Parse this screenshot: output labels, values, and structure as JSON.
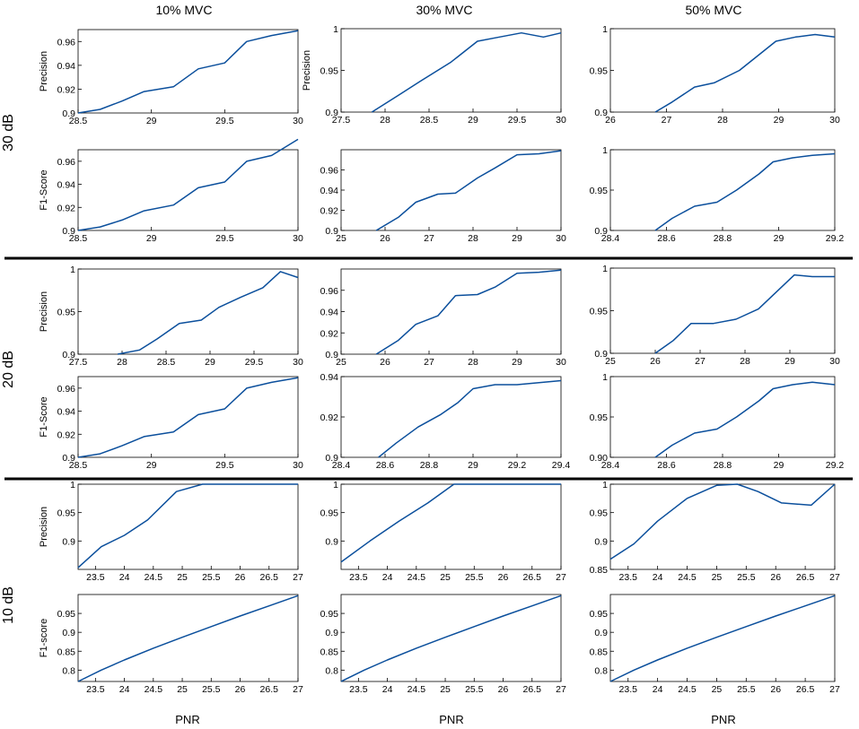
{
  "figure": {
    "column_titles": [
      "10% MVC",
      "30% MVC",
      "50% MVC"
    ],
    "row_labels": [
      "30 dB",
      "20 dB",
      "10 dB"
    ],
    "x_label": "PNR",
    "line_color": "#0b4f9c"
  },
  "chart_data": [
    {
      "type": "line",
      "group": "30 dB",
      "column": "10% MVC",
      "ylabel": "Precision",
      "xlim": [
        28.5,
        30
      ],
      "ylim": [
        0.9,
        0.97
      ],
      "xticks": [
        28.5,
        29,
        29.5,
        30
      ],
      "xtick_labels": [
        "28.5",
        "29",
        "29.5",
        "30"
      ],
      "yticks": [
        0.9,
        0.92,
        0.94,
        0.96
      ],
      "ytick_labels": [
        "0.9",
        "0.92",
        "0.94",
        "0.96"
      ],
      "x": [
        28.5,
        28.65,
        28.8,
        28.95,
        29.15,
        29.32,
        29.5,
        29.65,
        29.82,
        30
      ],
      "y": [
        0.9,
        0.903,
        0.91,
        0.918,
        0.922,
        0.937,
        0.942,
        0.96,
        0.965,
        0.969
      ]
    },
    {
      "type": "line",
      "group": "30 dB",
      "column": "10% MVC",
      "ylabel": "F1-Score",
      "xlim": [
        28.5,
        30
      ],
      "ylim": [
        0.9,
        0.97
      ],
      "xticks": [
        28.5,
        29,
        29.5,
        30
      ],
      "xtick_labels": [
        "28.5",
        "29",
        "29.5",
        "30"
      ],
      "yticks": [
        0.9,
        0.92,
        0.94,
        0.96
      ],
      "ytick_labels": [
        "0.9",
        "0.92",
        "0.94",
        "0.96"
      ],
      "x": [
        28.5,
        28.65,
        28.8,
        28.95,
        29.15,
        29.32,
        29.5,
        29.65,
        29.82,
        30
      ],
      "y": [
        0.9,
        0.903,
        0.909,
        0.917,
        0.922,
        0.937,
        0.942,
        0.96,
        0.965,
        0.979
      ]
    },
    {
      "type": "line",
      "group": "30 dB",
      "column": "30% MVC",
      "ylabel": "Precision",
      "xlim": [
        27.5,
        30
      ],
      "ylim": [
        0.9,
        1
      ],
      "xticks": [
        27.5,
        28,
        28.5,
        29,
        29.5,
        30
      ],
      "xtick_labels": [
        "27.5",
        "28",
        "28.5",
        "29",
        "29.5",
        "30"
      ],
      "yticks": [
        0.9,
        0.95,
        1
      ],
      "ytick_labels": [
        "0.9",
        "0.95",
        "1"
      ],
      "x": [
        27.85,
        28.15,
        28.4,
        28.75,
        29.05,
        29.3,
        29.55,
        29.8,
        30
      ],
      "y": [
        0.9,
        0.92,
        0.937,
        0.96,
        0.985,
        0.99,
        0.995,
        0.99,
        0.995
      ]
    },
    {
      "type": "line",
      "group": "30 dB",
      "column": "30% MVC",
      "ylabel": "",
      "xlim": [
        25,
        30
      ],
      "ylim": [
        0.9,
        0.98
      ],
      "xticks": [
        25,
        26,
        27,
        28,
        29,
        30
      ],
      "xtick_labels": [
        "25",
        "26",
        "27",
        "28",
        "29",
        "30"
      ],
      "yticks": [
        0.9,
        0.92,
        0.94,
        0.96
      ],
      "ytick_labels": [
        "0.9",
        "0.92",
        "0.94",
        "0.96"
      ],
      "x": [
        25.8,
        26.3,
        26.7,
        27.2,
        27.6,
        28.1,
        28.5,
        29,
        29.5,
        30
      ],
      "y": [
        0.9,
        0.913,
        0.928,
        0.936,
        0.937,
        0.952,
        0.962,
        0.975,
        0.976,
        0.979
      ]
    },
    {
      "type": "line",
      "group": "30 dB",
      "column": "50% MVC",
      "ylabel": "",
      "xlim": [
        26,
        30
      ],
      "ylim": [
        0.9,
        1
      ],
      "xticks": [
        26,
        27,
        28,
        29,
        30
      ],
      "xtick_labels": [
        "26",
        "27",
        "28",
        "29",
        "30"
      ],
      "yticks": [
        0.9,
        0.95,
        1
      ],
      "ytick_labels": [
        "0.9",
        "0.95",
        "1"
      ],
      "x": [
        26.8,
        27.1,
        27.5,
        27.85,
        28.3,
        28.95,
        29.3,
        29.65,
        30
      ],
      "y": [
        0.9,
        0.912,
        0.93,
        0.935,
        0.95,
        0.985,
        0.99,
        0.993,
        0.99
      ]
    },
    {
      "type": "line",
      "group": "30 dB",
      "column": "50% MVC",
      "ylabel": "",
      "xlim": [
        28.4,
        29.2
      ],
      "ylim": [
        0.9,
        1
      ],
      "xticks": [
        28.4,
        28.6,
        28.8,
        29,
        29.2
      ],
      "xtick_labels": [
        "28.4",
        "28.6",
        "28.8",
        "29",
        "29.2"
      ],
      "yticks": [
        0.9,
        0.95,
        1
      ],
      "ytick_labels": [
        "0.9",
        "0.95",
        "1"
      ],
      "x": [
        28.56,
        28.62,
        28.7,
        28.78,
        28.85,
        28.93,
        28.98,
        29.05,
        29.12,
        29.2
      ],
      "y": [
        0.9,
        0.915,
        0.93,
        0.935,
        0.95,
        0.97,
        0.985,
        0.99,
        0.993,
        0.995
      ]
    },
    {
      "type": "line",
      "group": "20 dB",
      "column": "10% MVC",
      "ylabel": "Precision",
      "xlim": [
        27.5,
        30
      ],
      "ylim": [
        0.9,
        1
      ],
      "xticks": [
        27.5,
        28,
        28.5,
        29,
        29.5,
        30
      ],
      "xtick_labels": [
        "27.5",
        "28",
        "28.5",
        "29",
        "29.5",
        "30"
      ],
      "yticks": [
        0.9,
        0.95,
        1
      ],
      "ytick_labels": [
        "0.9",
        "0.95",
        "1"
      ],
      "x": [
        27.95,
        28.2,
        28.4,
        28.65,
        28.9,
        29.1,
        29.35,
        29.6,
        29.8,
        30
      ],
      "y": [
        0.9,
        0.905,
        0.918,
        0.936,
        0.94,
        0.955,
        0.967,
        0.978,
        0.997,
        0.99
      ]
    },
    {
      "type": "line",
      "group": "20 dB",
      "column": "10% MVC",
      "ylabel": "F1-Score",
      "xlim": [
        28.5,
        30
      ],
      "ylim": [
        0.9,
        0.97
      ],
      "xticks": [
        28.5,
        29,
        29.5,
        30
      ],
      "xtick_labels": [
        "28.5",
        "29",
        "29.5",
        "30"
      ],
      "yticks": [
        0.9,
        0.92,
        0.94,
        0.96
      ],
      "ytick_labels": [
        "0.9",
        "0.92",
        "0.94",
        "0.96"
      ],
      "x": [
        28.5,
        28.65,
        28.8,
        28.95,
        29.15,
        29.32,
        29.5,
        29.65,
        29.82,
        30
      ],
      "y": [
        0.9,
        0.903,
        0.91,
        0.918,
        0.922,
        0.937,
        0.942,
        0.96,
        0.965,
        0.969
      ]
    },
    {
      "type": "line",
      "group": "20 dB",
      "column": "30% MVC",
      "ylabel": "",
      "xlim": [
        25,
        30
      ],
      "ylim": [
        0.9,
        0.98
      ],
      "xticks": [
        25,
        26,
        27,
        28,
        29,
        30
      ],
      "xtick_labels": [
        "25",
        "26",
        "27",
        "28",
        "29",
        "30"
      ],
      "yticks": [
        0.9,
        0.92,
        0.94,
        0.96
      ],
      "ytick_labels": [
        "0.9",
        "0.92",
        "0.94",
        "0.96"
      ],
      "x": [
        25.8,
        26.3,
        26.7,
        27.2,
        27.6,
        28.1,
        28.5,
        29,
        29.5,
        30
      ],
      "y": [
        0.9,
        0.913,
        0.928,
        0.936,
        0.955,
        0.956,
        0.963,
        0.976,
        0.977,
        0.979
      ]
    },
    {
      "type": "line",
      "group": "20 dB",
      "column": "30% MVC",
      "ylabel": "",
      "xlim": [
        28.4,
        29.4
      ],
      "ylim": [
        0.9,
        0.94
      ],
      "xticks": [
        28.4,
        28.6,
        28.8,
        29,
        29.2,
        29.4
      ],
      "xtick_labels": [
        "28.4",
        "28.6",
        "28.8",
        "29",
        "29.2",
        "29.4"
      ],
      "yticks": [
        0.9,
        0.92,
        0.94
      ],
      "ytick_labels": [
        "0.9",
        "0.92",
        "0.94"
      ],
      "x": [
        28.57,
        28.65,
        28.75,
        28.85,
        28.93,
        29,
        29.1,
        29.2,
        29.3,
        29.4
      ],
      "y": [
        0.9,
        0.907,
        0.915,
        0.921,
        0.927,
        0.934,
        0.936,
        0.936,
        0.937,
        0.938
      ]
    },
    {
      "type": "line",
      "group": "20 dB",
      "column": "50% MVC",
      "ylabel": "",
      "xlim": [
        25,
        30
      ],
      "ylim": [
        0.9,
        1
      ],
      "xticks": [
        25,
        26,
        27,
        28,
        29,
        30
      ],
      "xtick_labels": [
        "25",
        "26",
        "27",
        "28",
        "29",
        "30"
      ],
      "yticks": [
        0.9,
        0.95,
        1
      ],
      "ytick_labels": [
        "0.9",
        "0.95",
        "1"
      ],
      "x": [
        26,
        26.4,
        26.8,
        27.3,
        27.8,
        28.3,
        28.7,
        29.1,
        29.5,
        30
      ],
      "y": [
        0.9,
        0.915,
        0.935,
        0.935,
        0.94,
        0.952,
        0.972,
        0.992,
        0.99,
        0.99
      ]
    },
    {
      "type": "line",
      "group": "20 dB",
      "column": "50% MVC",
      "ylabel": "",
      "xlim": [
        28.4,
        29.2
      ],
      "ylim": [
        0.9,
        1
      ],
      "xticks": [
        28.4,
        28.6,
        28.8,
        29,
        29.2
      ],
      "xtick_labels": [
        "28.4",
        "28.6",
        "28.8",
        "29",
        "29.2"
      ],
      "yticks": [
        0.9,
        0.95,
        1
      ],
      "ytick_labels": [
        "0.90",
        "0.95",
        "1"
      ],
      "x": [
        28.56,
        28.62,
        28.7,
        28.78,
        28.85,
        28.93,
        28.98,
        29.05,
        29.12,
        29.2
      ],
      "y": [
        0.9,
        0.915,
        0.93,
        0.935,
        0.95,
        0.97,
        0.985,
        0.99,
        0.993,
        0.99
      ]
    },
    {
      "type": "line",
      "group": "10 dB",
      "column": "10% MVC",
      "ylabel": "Precision",
      "xlim": [
        23.2,
        27
      ],
      "ylim": [
        0.85,
        1
      ],
      "xticks": [
        23.5,
        24,
        24.5,
        25,
        25.5,
        26,
        26.5,
        27
      ],
      "xtick_labels": [
        "23.5",
        "24",
        "24.5",
        "25",
        "25.5",
        "26",
        "26.5",
        "27"
      ],
      "yticks": [
        0.9,
        0.95,
        1
      ],
      "ytick_labels": [
        "0.9",
        "0.95",
        "1"
      ],
      "x": [
        23.2,
        23.6,
        24,
        24.4,
        24.9,
        25.35,
        26,
        27
      ],
      "y": [
        0.853,
        0.89,
        0.91,
        0.937,
        0.987,
        1,
        1,
        1
      ]
    },
    {
      "type": "line",
      "group": "10 dB",
      "column": "10% MVC",
      "ylabel": "F1-score",
      "xlim": [
        23.2,
        27
      ],
      "ylim": [
        0.77,
        1
      ],
      "xticks": [
        23.5,
        24,
        24.5,
        25,
        25.5,
        26,
        26.5,
        27
      ],
      "xtick_labels": [
        "23.5",
        "24",
        "24.5",
        "25",
        "25.5",
        "26",
        "26.5",
        "27"
      ],
      "yticks": [
        0.8,
        0.85,
        0.9,
        0.95
      ],
      "ytick_labels": [
        "0.8",
        "0.85",
        "0.9",
        "0.95"
      ],
      "x": [
        23.2,
        23.6,
        24,
        24.5,
        25,
        25.5,
        26,
        26.5,
        27
      ],
      "y": [
        0.77,
        0.8,
        0.827,
        0.858,
        0.887,
        0.915,
        0.943,
        0.97,
        0.997
      ]
    },
    {
      "type": "line",
      "group": "10 dB",
      "column": "30% MVC",
      "ylabel": "",
      "xlim": [
        23.2,
        27
      ],
      "ylim": [
        0.85,
        1
      ],
      "xticks": [
        23.5,
        24,
        24.5,
        25,
        25.5,
        26,
        26.5,
        27
      ],
      "xtick_labels": [
        "23.5",
        "24",
        "24.5",
        "25",
        "25.5",
        "26",
        "26.5",
        "27"
      ],
      "yticks": [
        0.9,
        0.95,
        1
      ],
      "ytick_labels": [
        "0.9",
        "0.95",
        "1"
      ],
      "x": [
        23.2,
        23.7,
        24.2,
        24.7,
        25.15,
        27
      ],
      "y": [
        0.863,
        0.9,
        0.935,
        0.967,
        1,
        1
      ]
    },
    {
      "type": "line",
      "group": "10 dB",
      "column": "30% MVC",
      "ylabel": "",
      "xlim": [
        23.2,
        27
      ],
      "ylim": [
        0.77,
        1
      ],
      "xticks": [
        23.5,
        24,
        24.5,
        25,
        25.5,
        26,
        26.5,
        27
      ],
      "xtick_labels": [
        "23.5",
        "24",
        "24.5",
        "25",
        "25.5",
        "26",
        "26.5",
        "27"
      ],
      "yticks": [
        0.8,
        0.85,
        0.9,
        0.95
      ],
      "ytick_labels": [
        "0.8",
        "0.85",
        "0.9",
        "0.95"
      ],
      "x": [
        23.2,
        23.6,
        24,
        24.5,
        25,
        25.5,
        26,
        26.5,
        27
      ],
      "y": [
        0.77,
        0.8,
        0.827,
        0.858,
        0.887,
        0.915,
        0.943,
        0.97,
        0.997
      ]
    },
    {
      "type": "line",
      "group": "10 dB",
      "column": "50% MVC",
      "ylabel": "",
      "xlim": [
        23.2,
        27
      ],
      "ylim": [
        0.85,
        1
      ],
      "xticks": [
        23.5,
        24,
        24.5,
        25,
        25.5,
        26,
        26.5,
        27
      ],
      "xtick_labels": [
        "23.5",
        "24",
        "24.5",
        "25",
        "25.5",
        "26",
        "26.5",
        "27"
      ],
      "yticks": [
        0.85,
        0.9,
        0.95,
        1
      ],
      "ytick_labels": [
        "0.85",
        "0.9",
        "0.95",
        "1"
      ],
      "x": [
        23.2,
        23.6,
        24,
        24.5,
        25,
        25.35,
        25.7,
        26.1,
        26.6,
        27
      ],
      "y": [
        0.868,
        0.895,
        0.935,
        0.975,
        0.998,
        1,
        0.987,
        0.967,
        0.963,
        1
      ]
    },
    {
      "type": "line",
      "group": "10 dB",
      "column": "50% MVC",
      "ylabel": "",
      "xlim": [
        23.2,
        27
      ],
      "ylim": [
        0.77,
        1
      ],
      "xticks": [
        23.5,
        24,
        24.5,
        25,
        25.5,
        26,
        26.5,
        27
      ],
      "xtick_labels": [
        "23.5",
        "24",
        "24.5",
        "25",
        "25.5",
        "26",
        "26.5",
        "27"
      ],
      "yticks": [
        0.8,
        0.85,
        0.9,
        0.95
      ],
      "ytick_labels": [
        "0.8",
        "0.85",
        "0.9",
        "0.95"
      ],
      "x": [
        23.2,
        23.6,
        24,
        24.5,
        25,
        25.5,
        26,
        26.5,
        27
      ],
      "y": [
        0.77,
        0.8,
        0.827,
        0.858,
        0.887,
        0.915,
        0.943,
        0.97,
        0.997
      ]
    }
  ]
}
